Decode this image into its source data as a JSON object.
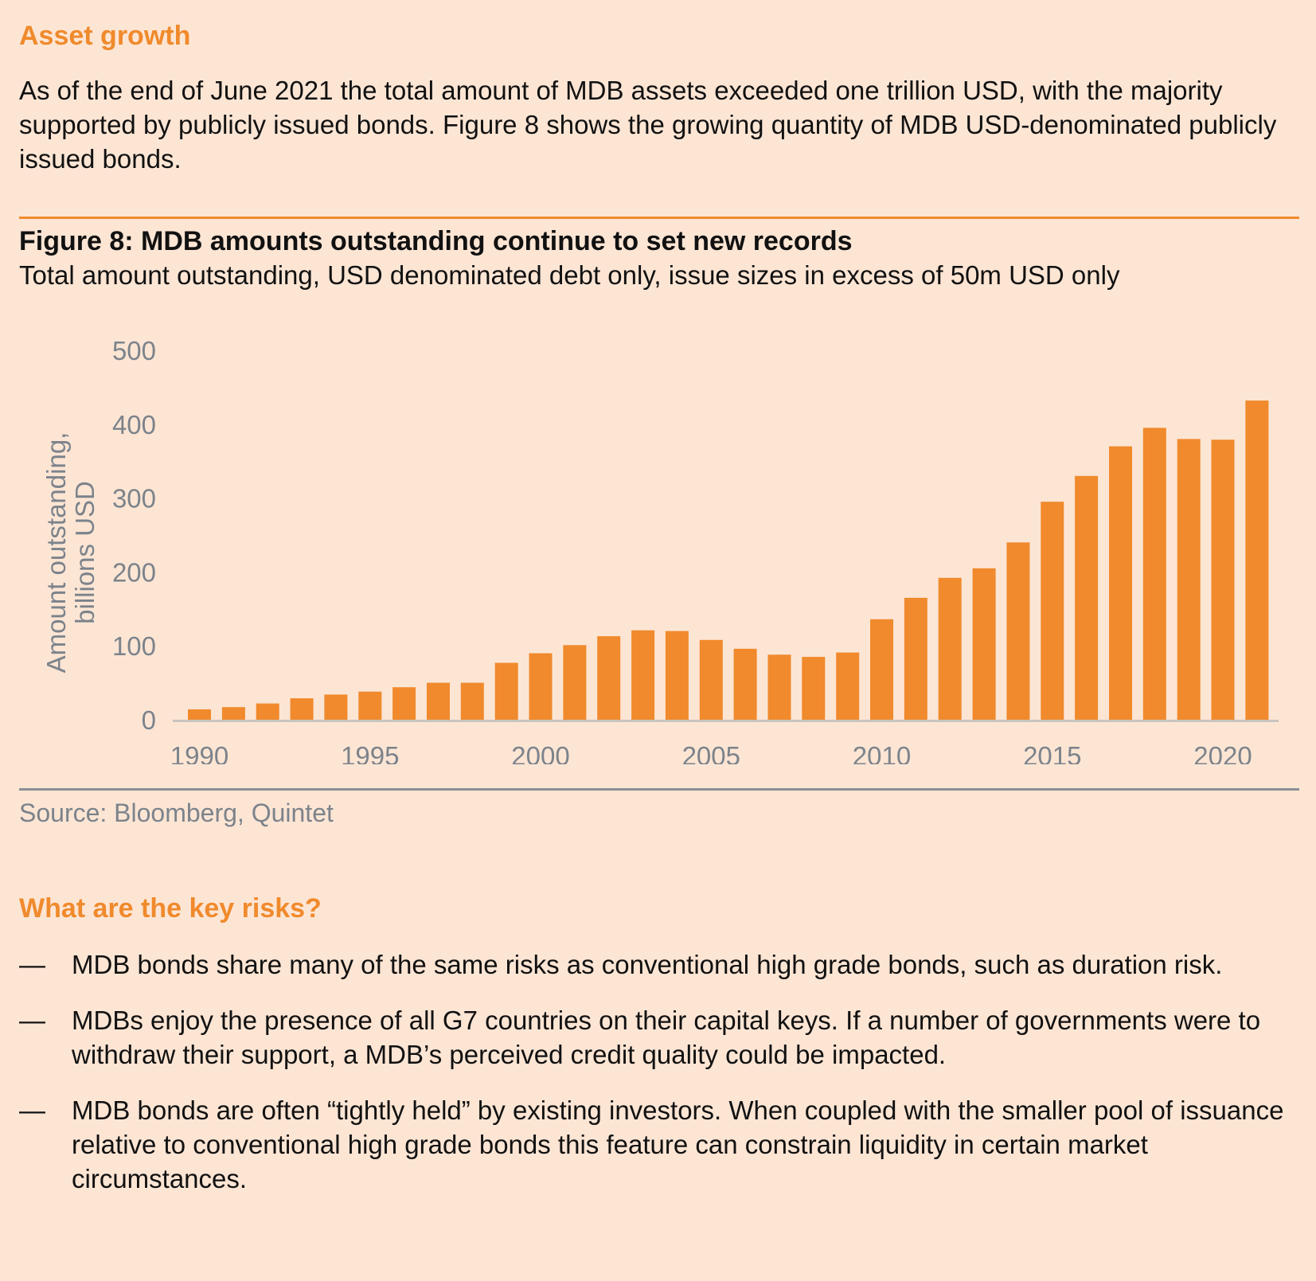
{
  "section1": {
    "heading": "Asset growth",
    "paragraph": "As of the end of June 2021 the total amount of MDB assets exceeded one trillion USD, with the majority supported by publicly issued bonds. Figure 8 shows the growing quantity of MDB USD-denominated publicly issued bonds."
  },
  "figure": {
    "title": "Figure 8: MDB amounts outstanding continue to set new records",
    "subtitle": "Total amount outstanding, USD denominated debt only, issue sizes in excess of 50m USD only",
    "source": "Source: Bloomberg, Quintet"
  },
  "chart_data": {
    "type": "bar",
    "categories": [
      "1990",
      "1991",
      "1992",
      "1993",
      "1994",
      "1995",
      "1996",
      "1997",
      "1998",
      "1999",
      "2000",
      "2001",
      "2002",
      "2003",
      "2004",
      "2005",
      "2006",
      "2007",
      "2008",
      "2009",
      "2010",
      "2011",
      "2012",
      "2013",
      "2014",
      "2015",
      "2016",
      "2017",
      "2018",
      "2019",
      "2020",
      "2021"
    ],
    "values": [
      14,
      17,
      22,
      29,
      34,
      38,
      44,
      50,
      50,
      77,
      90,
      101,
      113,
      121,
      120,
      108,
      96,
      88,
      85,
      91,
      136,
      165,
      192,
      205,
      240,
      295,
      330,
      370,
      395,
      380,
      379,
      432
    ],
    "title": "",
    "xlabel": "",
    "ylabel": "Amount outstanding, billions USD",
    "ylabel_lines": [
      "Amount outstanding,",
      "billions USD"
    ],
    "ylim": [
      0,
      500
    ],
    "yticks": [
      0,
      100,
      200,
      300,
      400,
      500
    ],
    "xtick_labels": [
      "1990",
      "1995",
      "2000",
      "2005",
      "2010",
      "2015",
      "2020"
    ],
    "bar_color": "#f08a2c",
    "axis_color": "#c8c4c0",
    "label_color": "#7c838b",
    "grid": false,
    "legend": "none"
  },
  "section2": {
    "heading": "What are the key risks?",
    "dash": "—",
    "items": [
      "MDB bonds share many of the same risks as conventional high grade bonds, such as duration risk.",
      "MDBs enjoy the presence of all G7 countries on their capital keys. If a number of governments were to withdraw their support, a MDB’s perceived credit quality could be impacted.",
      "MDB bonds are often “tightly held” by existing investors. When coupled with the smaller pool of issuance relative to conventional high grade bonds this feature can constrain liquidity in certain market circumstances."
    ]
  }
}
